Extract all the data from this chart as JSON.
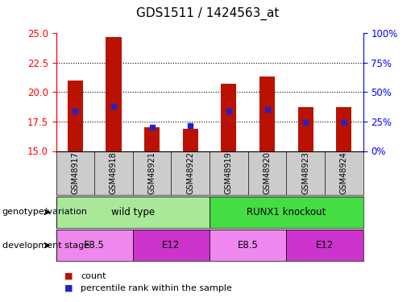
{
  "title": "GDS1511 / 1424563_at",
  "samples": [
    "GSM48917",
    "GSM48918",
    "GSM48921",
    "GSM48922",
    "GSM48919",
    "GSM48920",
    "GSM48923",
    "GSM48924"
  ],
  "count_values": [
    21.0,
    24.7,
    17.0,
    16.9,
    20.7,
    21.3,
    18.7,
    18.7
  ],
  "percentile_values": [
    18.4,
    18.8,
    17.05,
    17.15,
    18.4,
    18.5,
    17.4,
    17.4
  ],
  "ylim_left": [
    15,
    25
  ],
  "ylim_right": [
    0,
    100
  ],
  "yticks_left": [
    15,
    17.5,
    20,
    22.5,
    25
  ],
  "yticks_right": [
    0,
    25,
    50,
    75,
    100
  ],
  "yticklabels_right": [
    "0%",
    "25%",
    "50%",
    "75%",
    "100%"
  ],
  "bar_color": "#bb1100",
  "percentile_color": "#2222cc",
  "bar_bottom": 15,
  "genotype_groups": [
    {
      "label": "wild type",
      "start": 0,
      "end": 4,
      "color": "#aae899"
    },
    {
      "label": "RUNX1 knockout",
      "start": 4,
      "end": 8,
      "color": "#44dd44"
    }
  ],
  "stage_groups": [
    {
      "label": "E8.5",
      "start": 0,
      "end": 2,
      "color": "#ee88ee"
    },
    {
      "label": "E12",
      "start": 2,
      "end": 4,
      "color": "#cc33cc"
    },
    {
      "label": "E8.5",
      "start": 4,
      "end": 6,
      "color": "#ee88ee"
    },
    {
      "label": "E12",
      "start": 6,
      "end": 8,
      "color": "#cc33cc"
    }
  ],
  "sample_box_color": "#cccccc",
  "legend_count_label": "count",
  "legend_percentile_label": "percentile rank within the sample"
}
